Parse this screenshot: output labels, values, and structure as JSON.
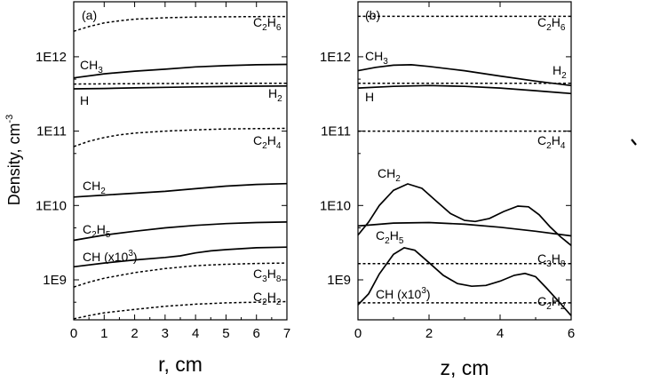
{
  "chart_data": [
    {
      "type": "line",
      "panel_label": "(a)",
      "xlabel": "r, cm",
      "ylabel_main": "Density, cm",
      "ylabel_sup": "-3",
      "y_scale": "log",
      "xlim": [
        0,
        7
      ],
      "ylim": [
        300000000.0,
        4500000000000.0
      ],
      "x_ticks": [
        0,
        1,
        2,
        3,
        4,
        5,
        6,
        7
      ],
      "x_tick_labels": [
        "0",
        "1",
        "2",
        "3",
        "4",
        "5",
        "6",
        "7"
      ],
      "y_ticks": [
        1000000000.0,
        10000000000.0,
        100000000000.0,
        1000000000000.0
      ],
      "y_tick_labels": [
        "1E9",
        "1E10",
        "1E11",
        "1E12"
      ],
      "series": [
        {
          "name": "C2H6",
          "style": "dashed",
          "x": [
            0,
            0.5,
            1,
            1.5,
            2,
            3,
            4,
            5,
            6,
            7
          ],
          "y": [
            2200000000000.0,
            2550000000000.0,
            2850000000000.0,
            3050000000000.0,
            3200000000000.0,
            3350000000000.0,
            3420000000000.0,
            3450000000000.0,
            3470000000000.0,
            3480000000000.0
          ]
        },
        {
          "name": "CH3",
          "style": "solid",
          "x": [
            0,
            1,
            2,
            3,
            4,
            5,
            6,
            7
          ],
          "y": [
            520000000000.0,
            590000000000.0,
            640000000000.0,
            680000000000.0,
            730000000000.0,
            760000000000.0,
            780000000000.0,
            790000000000.0
          ]
        },
        {
          "name": "H2",
          "style": "dashed",
          "x": [
            0,
            1,
            2,
            3,
            4,
            5,
            6,
            7
          ],
          "y": [
            430000000000.0,
            432000000000.0,
            435000000000.0,
            437000000000.0,
            438000000000.0,
            439000000000.0,
            440000000000.0,
            440000000000.0
          ]
        },
        {
          "name": "H",
          "style": "solid",
          "x": [
            0,
            1,
            2,
            3,
            4,
            5,
            6,
            7
          ],
          "y": [
            370000000000.0,
            375000000000.0,
            382000000000.0,
            388000000000.0,
            393000000000.0,
            398000000000.0,
            402000000000.0,
            405000000000.0
          ]
        },
        {
          "name": "C2H4",
          "style": "dashed",
          "x": [
            0,
            0.5,
            1,
            1.5,
            2,
            3,
            4,
            5,
            6,
            7
          ],
          "y": [
            62000000000.0,
            73000000000.0,
            82000000000.0,
            89000000000.0,
            94000000000.0,
            100000000000.0,
            104000000000.0,
            107000000000.0,
            108000000000.0,
            109000000000.0
          ]
        },
        {
          "name": "CH2",
          "style": "solid",
          "x": [
            0,
            1,
            2,
            3,
            4,
            5,
            6,
            7
          ],
          "y": [
            13000000000.0,
            13800000000.0,
            14600000000.0,
            15500000000.0,
            16800000000.0,
            18200000000.0,
            19200000000.0,
            19700000000.0
          ]
        },
        {
          "name": "C2H5",
          "style": "solid",
          "x": [
            0,
            1,
            2,
            3,
            4,
            5,
            6,
            7
          ],
          "y": [
            3400000000.0,
            4000000000.0,
            4500000000.0,
            5000000000.0,
            5400000000.0,
            5700000000.0,
            5900000000.0,
            6000000000.0
          ]
        },
        {
          "name": "CH (x10^3)",
          "style": "solid",
          "x": [
            0,
            1,
            2,
            3,
            3.5,
            4,
            4.5,
            5,
            6,
            7
          ],
          "y": [
            1500000000.0,
            1680000000.0,
            1850000000.0,
            2000000000.0,
            2100000000.0,
            2300000000.0,
            2450000000.0,
            2550000000.0,
            2700000000.0,
            2750000000.0
          ]
        },
        {
          "name": "C3H8",
          "style": "dashed",
          "x": [
            0,
            0.5,
            1,
            2,
            3,
            4,
            5,
            6,
            7
          ],
          "y": [
            800000000.0,
            930000000.0,
            1050000000.0,
            1250000000.0,
            1420000000.0,
            1550000000.0,
            1620000000.0,
            1660000000.0,
            1680000000.0
          ]
        },
        {
          "name": "C2H2",
          "style": "dashed",
          "x": [
            0,
            0.5,
            1,
            2,
            3,
            4,
            5,
            6,
            7
          ],
          "y": [
            300000000.0,
            330000000.0,
            360000000.0,
            400000000.0,
            440000000.0,
            470000000.0,
            490000000.0,
            500000000.0,
            510000000.0
          ]
        }
      ],
      "series_labels": [
        {
          "main": "C",
          "sub1": "2",
          "mid": "H",
          "sub2": "6"
        },
        {
          "main": "CH",
          "sub1": "3"
        },
        {
          "main": "H",
          "sub1": "2"
        },
        {
          "main": "H"
        },
        {
          "main": "C",
          "sub1": "2",
          "mid": "H",
          "sub2": "4"
        },
        {
          "main": "CH",
          "sub1": "2"
        },
        {
          "main": "C",
          "sub1": "2",
          "mid": "H",
          "sub2": "5"
        },
        {
          "main": "CH (x10",
          "sup": "3",
          "tail": ")"
        },
        {
          "main": "C",
          "sub1": "3",
          "mid": "H",
          "sub2": "8"
        },
        {
          "main": "C",
          "sub1": "2",
          "mid": "H",
          "sub2": "2"
        }
      ]
    },
    {
      "type": "line",
      "panel_label": "(b)",
      "xlabel": "z, cm",
      "y_scale": "log",
      "xlim": [
        0,
        6
      ],
      "ylim": [
        300000000.0,
        4500000000000.0
      ],
      "x_ticks": [
        0,
        2,
        4,
        6
      ],
      "x_tick_labels": [
        "0",
        "2",
        "4",
        "6"
      ],
      "y_ticks": [
        1000000000.0,
        10000000000.0,
        100000000000.0,
        1000000000000.0
      ],
      "y_tick_labels": [
        "1E9",
        "1E10",
        "1E11",
        "1E12"
      ],
      "series": [
        {
          "name": "C2H6",
          "style": "dashed",
          "x": [
            0,
            6
          ],
          "y": [
            3500000000000.0,
            3500000000000.0
          ]
        },
        {
          "name": "CH3",
          "style": "solid",
          "x": [
            0,
            0.5,
            1,
            1.5,
            2,
            3,
            4,
            5,
            6
          ],
          "y": [
            650000000000.0,
            720000000000.0,
            770000000000.0,
            780000000000.0,
            740000000000.0,
            650000000000.0,
            550000000000.0,
            470000000000.0,
            410000000000.0
          ]
        },
        {
          "name": "H2",
          "style": "dashed",
          "x": [
            0,
            6
          ],
          "y": [
            440000000000.0,
            440000000000.0
          ]
        },
        {
          "name": "H",
          "style": "solid",
          "x": [
            0,
            1,
            2,
            3,
            4,
            5,
            6
          ],
          "y": [
            380000000000.0,
            400000000000.0,
            410000000000.0,
            400000000000.0,
            380000000000.0,
            350000000000.0,
            320000000000.0
          ]
        },
        {
          "name": "C2H4",
          "style": "dashed",
          "x": [
            0,
            6
          ],
          "y": [
            100000000000.0,
            100000000000.0
          ]
        },
        {
          "name": "CH2",
          "style": "solid",
          "x": [
            0,
            0.3,
            0.6,
            1.0,
            1.4,
            1.8,
            2.2,
            2.6,
            3.0,
            3.3,
            3.7,
            4.1,
            4.5,
            4.8,
            5.1,
            5.4,
            5.7,
            6.0
          ],
          "y": [
            4000000000.0,
            6000000000.0,
            10000000000.0,
            16000000000.0,
            19500000000.0,
            17000000000.0,
            11500000000.0,
            7800000000.0,
            6300000000.0,
            6100000000.0,
            6700000000.0,
            8300000000.0,
            9800000000.0,
            9600000000.0,
            7500000000.0,
            5200000000.0,
            3800000000.0,
            2900000000.0
          ]
        },
        {
          "name": "C2H5",
          "style": "solid",
          "x": [
            0,
            1,
            2,
            3,
            4,
            5,
            6
          ],
          "y": [
            5300000000.0,
            5800000000.0,
            5900000000.0,
            5600000000.0,
            5100000000.0,
            4500000000.0,
            3900000000.0
          ]
        },
        {
          "name": "C3H8",
          "style": "dashed",
          "x": [
            0,
            6
          ],
          "y": [
            1650000000.0,
            1650000000.0
          ]
        },
        {
          "name": "CH (x10^3)",
          "style": "solid",
          "x": [
            0,
            0.3,
            0.6,
            1.0,
            1.3,
            1.6,
            2.0,
            2.4,
            2.8,
            3.2,
            3.6,
            4.0,
            4.4,
            4.7,
            5.0,
            5.3,
            5.7,
            6.0
          ],
          "y": [
            460000000.0,
            650000000.0,
            1200000000.0,
            2200000000.0,
            2700000000.0,
            2500000000.0,
            1700000000.0,
            1150000000.0,
            890000000.0,
            820000000.0,
            840000000.0,
            960000000.0,
            1150000000.0,
            1220000000.0,
            1100000000.0,
            780000000.0,
            480000000.0,
            330000000.0
          ]
        },
        {
          "name": "C2H2",
          "style": "dashed",
          "x": [
            0,
            6
          ],
          "y": [
            490000000.0,
            490000000.0
          ]
        }
      ],
      "series_labels": [
        {
          "main": "C",
          "sub1": "2",
          "mid": "H",
          "sub2": "6"
        },
        {
          "main": "CH",
          "sub1": "3"
        },
        {
          "main": "H",
          "sub1": "2"
        },
        {
          "main": "H"
        },
        {
          "main": "C",
          "sub1": "2",
          "mid": "H",
          "sub2": "4"
        },
        {
          "main": "CH",
          "sub1": "2"
        },
        {
          "main": "C",
          "sub1": "2",
          "mid": "H",
          "sub2": "5"
        },
        {
          "main": "C",
          "sub1": "3",
          "mid": "H",
          "sub2": "8"
        },
        {
          "main": "CH (x10",
          "sup": "3",
          "tail": ")"
        },
        {
          "main": "C",
          "sub1": "2",
          "mid": "H",
          "sub2": "2"
        }
      ]
    }
  ]
}
